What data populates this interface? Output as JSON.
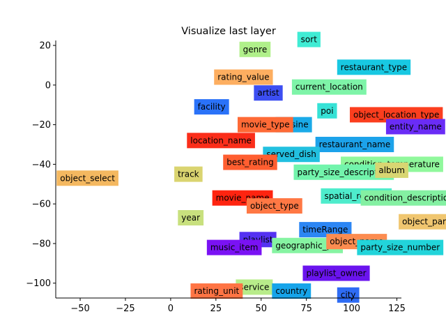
{
  "chart_data": {
    "type": "scatter",
    "title": "Visualize last layer",
    "xlabel": "",
    "ylabel": "",
    "xlim": [
      -63.5,
      127.5
    ],
    "ylim": [
      -107.5,
      22.5
    ],
    "xticks": [
      -50,
      -25,
      0,
      25,
      50,
      75,
      100,
      125
    ],
    "yticks": [
      20,
      0,
      -20,
      -40,
      -60,
      -80,
      -100
    ],
    "xtick_labels": [
      "−50",
      "−25",
      "0",
      "25",
      "50",
      "75",
      "100",
      "125"
    ],
    "ytick_labels": [
      "20",
      "0",
      "−20",
      "−40",
      "−60",
      "−80",
      "−100"
    ],
    "grid": false,
    "points": [
      {
        "label": "object_select",
        "x": -63,
        "y": -47,
        "color": "#f4b860"
      },
      {
        "label": "track",
        "x": 2,
        "y": -45,
        "color": "#dad470"
      },
      {
        "label": "year",
        "x": 4,
        "y": -67,
        "color": "#c8e07e"
      },
      {
        "label": "genre",
        "x": 38,
        "y": 18,
        "color": "#b0f08a"
      },
      {
        "label": "sort",
        "x": 70,
        "y": 23,
        "color": "#40ecd4"
      },
      {
        "label": "restaurant_type",
        "x": 92,
        "y": 9,
        "color": "#18c8e2"
      },
      {
        "label": "rating_value",
        "x": 24,
        "y": 4,
        "color": "#fdae60"
      },
      {
        "label": "current_location",
        "x": 67,
        "y": -1,
        "color": "#7ef4a8"
      },
      {
        "label": "artist",
        "x": 46,
        "y": -4,
        "color": "#3c4ef2"
      },
      {
        "label": "facility",
        "x": 13,
        "y": -11,
        "color": "#2a72f8"
      },
      {
        "label": "poi",
        "x": 81,
        "y": -13,
        "color": "#36e2d6"
      },
      {
        "label": "object_location_type",
        "x": 99,
        "y": -15,
        "color": "#fb3e1e"
      },
      {
        "label": "entity_name",
        "x": 119,
        "y": -21,
        "color": "#6a2cf6"
      },
      {
        "label": "cuisine",
        "x": 58,
        "y": -20,
        "color": "#1aaae8"
      },
      {
        "label": "movie_type",
        "x": 37,
        "y": -20,
        "color": "#fe6a36"
      },
      {
        "label": "location_name",
        "x": 9,
        "y": -28,
        "color": "#fb2e1a"
      },
      {
        "label": "restaurant_name",
        "x": 80,
        "y": -30,
        "color": "#1ca2ea"
      },
      {
        "label": "served_dish",
        "x": 51,
        "y": -35,
        "color": "#22c0e0"
      },
      {
        "label": "best_rating",
        "x": 29,
        "y": -39,
        "color": "#ff5e30"
      },
      {
        "label": "condition_temperature",
        "x": 94,
        "y": -40,
        "color": "#90f89c"
      },
      {
        "label": "party_size_description",
        "x": 68,
        "y": -44,
        "color": "#72f4ac"
      },
      {
        "label": "album",
        "x": 113,
        "y": -43,
        "color": "#d8d672"
      },
      {
        "label": "spatial_relation",
        "x": 83,
        "y": -56,
        "color": "#4eeccc"
      },
      {
        "label": "condition_description",
        "x": 105,
        "y": -57,
        "color": "#84f0a2"
      },
      {
        "label": "movie_name",
        "x": 23,
        "y": -57,
        "color": "#fe2410"
      },
      {
        "label": "object_type",
        "x": 42,
        "y": -61,
        "color": "#ff7844"
      },
      {
        "label": "object_part",
        "x": 126,
        "y": -69,
        "color": "#f0c670"
      },
      {
        "label": "timeRange",
        "x": 71,
        "y": -73,
        "color": "#2c86f4"
      },
      {
        "label": "playlist",
        "x": 38,
        "y": -78,
        "color": "#5432f2"
      },
      {
        "label": "music_item",
        "x": 20,
        "y": -82,
        "color": "#7a12f4"
      },
      {
        "label": "geographic_poi",
        "x": 56,
        "y": -81,
        "color": "#86f4a2"
      },
      {
        "label": "object_name",
        "x": 86,
        "y": -79,
        "color": "#fc8c50"
      },
      {
        "label": "party_size_number",
        "x": 103,
        "y": -82,
        "color": "#22d4da"
      },
      {
        "label": "playlist_owner",
        "x": 73,
        "y": -95,
        "color": "#6a14ee"
      },
      {
        "label": "service",
        "x": 36,
        "y": -102,
        "color": "#b8ec8a"
      },
      {
        "label": "rating_unit",
        "x": 11,
        "y": -104,
        "color": "#ff7444"
      },
      {
        "label": "country",
        "x": 56,
        "y": -104,
        "color": "#16a4ea"
      },
      {
        "label": "city",
        "x": 92,
        "y": -106,
        "color": "#2e6cf4"
      }
    ]
  }
}
